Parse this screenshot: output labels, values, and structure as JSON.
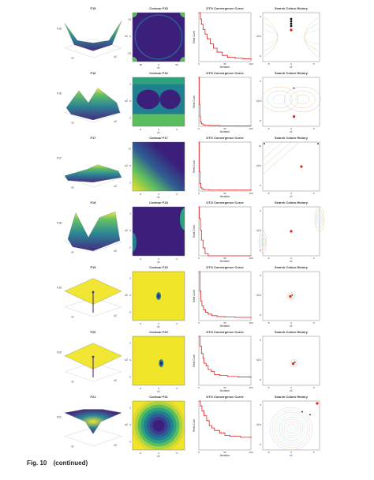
{
  "figure": {
    "caption_label": "Fig. 10",
    "caption_note": "(continued)"
  },
  "chart_data": [
    {
      "row": 1,
      "titles": [
        "F15",
        "Contour F15",
        "OTO Convergence Curve",
        "Search Colors History"
      ],
      "surface": {
        "type": "surface",
        "shape": "four-corner-peaks",
        "xlabel": "x1",
        "ylabel": "x2",
        "zlabel": "F15"
      },
      "contour": {
        "type": "heatmap",
        "shape": "saddle",
        "xlabel": "x1",
        "ylabel": "x2",
        "xticks": [
          "-50",
          "0",
          "50"
        ],
        "yticks": [
          "-50",
          "0",
          "50"
        ]
      },
      "convergence": {
        "type": "line",
        "scale": "log",
        "xlabel": "Iteration",
        "ylabel": "Best Cost",
        "xticks": [
          "0",
          "50",
          "100"
        ],
        "x": [
          0,
          3,
          5,
          8,
          12,
          16,
          22,
          28,
          35,
          45,
          55,
          70,
          85,
          100
        ],
        "y": [
          1.0,
          0.72,
          0.55,
          0.42,
          0.33,
          0.26,
          0.2,
          0.16,
          0.13,
          0.11,
          0.1,
          0.095,
          0.092,
          0.09
        ]
      },
      "history": {
        "type": "scatter",
        "xlabel": "x1",
        "ylabel": "x2",
        "xticks": [
          "-5",
          "0",
          "5"
        ],
        "yticks": [
          "-5",
          "0",
          "5"
        ]
      }
    },
    {
      "row": 2,
      "titles": [
        "F16",
        "Contour F16",
        "OTO Convergence Curve",
        "Search Colors History"
      ],
      "surface": {
        "type": "surface",
        "shape": "twin-valleys",
        "xlabel": "x1",
        "ylabel": "x2",
        "zlabel": "F16"
      },
      "contour": {
        "type": "heatmap",
        "shape": "twin-wells",
        "xlabel": "x1",
        "ylabel": "x2",
        "xticks": [
          "-5",
          "0",
          "5"
        ],
        "yticks": [
          "-5",
          "0",
          "5"
        ]
      },
      "convergence": {
        "type": "line",
        "scale": "linear",
        "xlabel": "Iteration",
        "ylabel": "Best Cost",
        "xticks": [
          "0",
          "50",
          "100"
        ],
        "x": [
          0,
          1,
          2,
          3,
          5,
          8,
          12,
          20,
          40,
          70,
          100
        ],
        "y": [
          1.0,
          0.45,
          0.2,
          0.09,
          0.05,
          0.03,
          0.02,
          0.015,
          0.01,
          0.01,
          0.01
        ]
      },
      "history": {
        "type": "scatter",
        "xlabel": "x1",
        "ylabel": "x2",
        "xticks": [
          "-5",
          "0",
          "5"
        ],
        "yticks": [
          "-5",
          "0",
          "5"
        ]
      }
    },
    {
      "row": 3,
      "titles": [
        "F17",
        "Contour F17",
        "OTO Convergence Curve",
        "Search Colors History"
      ],
      "surface": {
        "type": "surface",
        "shape": "flat-ridge",
        "xlabel": "x1",
        "ylabel": "x2",
        "zlabel": "F17"
      },
      "contour": {
        "type": "heatmap",
        "shape": "diagonal",
        "xlabel": "x1",
        "ylabel": "x2",
        "xticks": [
          "-5",
          "0",
          "5"
        ],
        "yticks": [
          "0",
          "5",
          "10"
        ]
      },
      "convergence": {
        "type": "line",
        "scale": "linear",
        "xlabel": "Iteration",
        "ylabel": "Best Cost",
        "xticks": [
          "0",
          "50",
          "100"
        ],
        "x": [
          0,
          1,
          2,
          4,
          6,
          10,
          20,
          40,
          70,
          100
        ],
        "y": [
          1.0,
          0.4,
          0.15,
          0.07,
          0.04,
          0.03,
          0.02,
          0.02,
          0.02,
          0.02
        ]
      },
      "history": {
        "type": "scatter",
        "xlabel": "x1",
        "ylabel": "x2",
        "xticks": [
          "-5",
          "0",
          "5"
        ],
        "yticks": [
          "0",
          "5",
          "10"
        ]
      }
    },
    {
      "row": 4,
      "titles": [
        "F18",
        "Contour F18",
        "OTO Convergence Curve",
        "Search Colors History"
      ],
      "surface": {
        "type": "surface",
        "shape": "tall-peaks",
        "xlabel": "x1",
        "ylabel": "x2",
        "zlabel": "F18"
      },
      "contour": {
        "type": "heatmap",
        "shape": "edge-lobes",
        "xlabel": "x1",
        "ylabel": "x2",
        "xticks": [
          "-2",
          "0",
          "2"
        ],
        "yticks": [
          "-2",
          "0",
          "2"
        ]
      },
      "convergence": {
        "type": "line",
        "scale": "log",
        "xlabel": "Iteration",
        "ylabel": "Best Cost",
        "xticks": [
          "0",
          "50",
          "100"
        ],
        "x": [
          0,
          1,
          3,
          5,
          8,
          12,
          18,
          25,
          40,
          60,
          100
        ],
        "y": [
          1.0,
          0.55,
          0.3,
          0.18,
          0.12,
          0.09,
          0.07,
          0.06,
          0.055,
          0.05,
          0.05
        ]
      },
      "history": {
        "type": "scatter",
        "xlabel": "x1",
        "ylabel": "x2",
        "xticks": [
          "-2",
          "0",
          "2"
        ],
        "yticks": [
          "-2",
          "0",
          "2"
        ]
      }
    },
    {
      "row": 5,
      "titles": [
        "F19",
        "Contour F19",
        "OTO Convergence Curve",
        "Search Colors History"
      ],
      "surface": {
        "type": "surface",
        "shape": "spike-plane",
        "xlabel": "x1",
        "ylabel": "x2",
        "zlabel": "F19"
      },
      "contour": {
        "type": "heatmap",
        "shape": "center-spot",
        "xlabel": "x1",
        "ylabel": "x2",
        "xticks": [
          "-5",
          "0",
          "5"
        ],
        "yticks": [
          "-5",
          "0",
          "5"
        ]
      },
      "convergence": {
        "type": "line",
        "scale": "linear",
        "xlabel": "Iteration",
        "ylabel": "Best Cost",
        "xticks": [
          "0",
          "50",
          "100"
        ],
        "x": [
          0,
          2,
          4,
          6,
          9,
          13,
          18,
          25,
          35,
          50,
          70,
          100
        ],
        "y": [
          1.0,
          0.6,
          0.4,
          0.3,
          0.22,
          0.17,
          0.13,
          0.1,
          0.08,
          0.07,
          0.065,
          0.06
        ]
      },
      "history": {
        "type": "scatter",
        "xlabel": "x1",
        "ylabel": "x2",
        "xticks": [
          "-5",
          "0",
          "5"
        ],
        "yticks": [
          "-5",
          "0",
          "5"
        ]
      }
    },
    {
      "row": 6,
      "titles": [
        "F20",
        "Contour F20",
        "OTO Convergence Curve",
        "Search Colors History"
      ],
      "surface": {
        "type": "surface",
        "shape": "spike-plane",
        "xlabel": "x1",
        "ylabel": "x2",
        "zlabel": "F20"
      },
      "contour": {
        "type": "heatmap",
        "shape": "center-spot",
        "xlabel": "x1",
        "ylabel": "x2",
        "xticks": [
          "-5",
          "0",
          "5"
        ],
        "yticks": [
          "-5",
          "0",
          "5"
        ]
      },
      "convergence": {
        "type": "line",
        "scale": "linear",
        "xlabel": "Iteration",
        "ylabel": "Best Cost",
        "xticks": [
          "0",
          "50",
          "100"
        ],
        "x": [
          0,
          2,
          5,
          8,
          10,
          14,
          18,
          24,
          30,
          40,
          55,
          75,
          100
        ],
        "y": [
          1.0,
          0.8,
          0.65,
          0.55,
          0.45,
          0.4,
          0.32,
          0.28,
          0.22,
          0.2,
          0.18,
          0.17,
          0.16
        ]
      },
      "history": {
        "type": "scatter",
        "xlabel": "x1",
        "ylabel": "x2",
        "xticks": [
          "-5",
          "0",
          "5"
        ],
        "yticks": [
          "-5",
          "0",
          "5"
        ]
      }
    },
    {
      "row": 7,
      "titles": [
        "F21",
        "Contour F21",
        "OTO Convergence Curve",
        "Search Colors History"
      ],
      "surface": {
        "type": "surface",
        "shape": "bowl",
        "xlabel": "x1",
        "ylabel": "x2",
        "zlabel": "F21"
      },
      "contour": {
        "type": "heatmap",
        "shape": "rings",
        "xlabel": "x1",
        "ylabel": "x2",
        "xticks": [
          "-5",
          "0",
          "5"
        ],
        "yticks": [
          "-5",
          "0",
          "5"
        ]
      },
      "convergence": {
        "type": "line",
        "scale": "linear",
        "xlabel": "Iteration",
        "ylabel": "Best Cost",
        "xticks": [
          "0",
          "50",
          "100"
        ],
        "x": [
          0,
          3,
          6,
          10,
          15,
          20,
          25,
          30,
          40,
          50,
          60,
          80,
          100
        ],
        "y": [
          1.0,
          0.9,
          0.8,
          0.7,
          0.6,
          0.5,
          0.45,
          0.4,
          0.35,
          0.3,
          0.28,
          0.26,
          0.25
        ]
      },
      "history": {
        "type": "scatter",
        "xlabel": "x1",
        "ylabel": "x2",
        "xticks": [
          "-5",
          "0",
          "5"
        ],
        "yticks": [
          "-5",
          "0",
          "5"
        ]
      }
    }
  ]
}
